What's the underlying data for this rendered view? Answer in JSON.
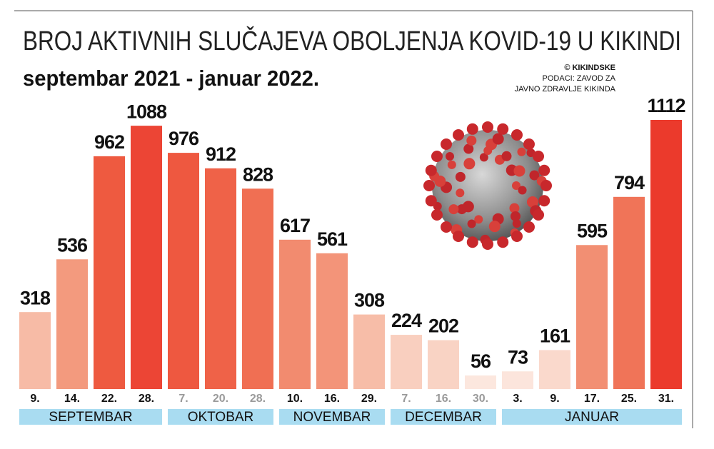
{
  "chart_data": {
    "type": "bar",
    "title": "BROJ AKTIVNIH SLUČAJEVA OBOLJENJA KOVID-19 U KIKINDI",
    "subtitle": "septembar 2021 - januar 2022.",
    "source": [
      "© KIKINDSKE",
      "PODACI: ZAVOD ZA",
      "JAVNO ZDRAVLJE KIKINDA"
    ],
    "groups": [
      {
        "name": "SEPTEMBAR",
        "categories": [
          "9.",
          "14.",
          "22.",
          "28."
        ],
        "label_color": "#111111"
      },
      {
        "name": "OKTOBAR",
        "categories": [
          "7.",
          "20.",
          "28."
        ],
        "label_color": "#9a9a9a"
      },
      {
        "name": "NOVEMBAR",
        "categories": [
          "10.",
          "16.",
          "29."
        ],
        "label_color": "#111111"
      },
      {
        "name": "DECEMBAR",
        "categories": [
          "7.",
          "16.",
          "30."
        ],
        "label_color": "#9a9a9a"
      },
      {
        "name": "JANUAR",
        "categories": [
          "3.",
          "9.",
          "17.",
          "25.",
          "31."
        ],
        "label_color": "#111111"
      }
    ],
    "values": [
      318,
      536,
      962,
      1088,
      976,
      912,
      828,
      617,
      561,
      308,
      224,
      202,
      56,
      73,
      161,
      595,
      794,
      1112
    ],
    "colors": [
      "#f7bba6",
      "#f39a7e",
      "#ee5a40",
      "#ec4535",
      "#ee5840",
      "#ef6248",
      "#f06f53",
      "#f28b6f",
      "#f39479",
      "#f7bda8",
      "#f9cfbf",
      "#f9d3c4",
      "#fce7de",
      "#fce5dc",
      "#fad9cc",
      "#f28f73",
      "#f07458",
      "#eb3a2c"
    ],
    "band_color": "#a9dcf1"
  }
}
